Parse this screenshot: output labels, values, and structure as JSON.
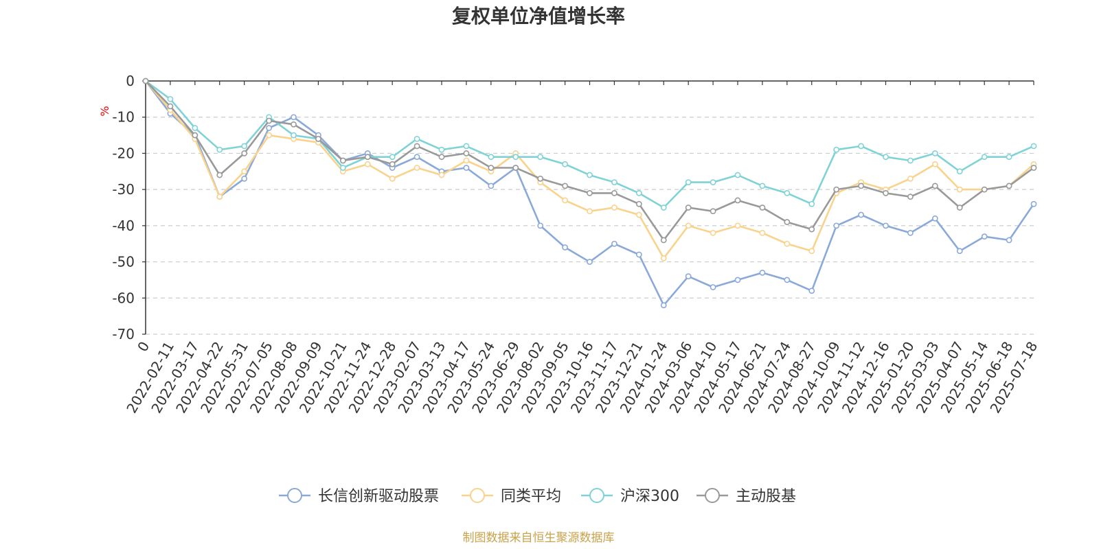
{
  "chart_data": {
    "type": "line",
    "title": "复权单位净值增长率",
    "ylabel": "%",
    "ylim": [
      -70,
      0
    ],
    "yticks": [
      0,
      -10,
      -20,
      -30,
      -40,
      -50,
      -60,
      -70
    ],
    "grid": true,
    "legend_position": "bottom",
    "source": "制图数据来自恒生聚源数据库",
    "x": [
      "0",
      "2022-02-11",
      "2022-03-17",
      "2022-04-22",
      "2022-05-31",
      "2022-07-05",
      "2022-08-08",
      "2022-09-09",
      "2022-10-21",
      "2022-11-24",
      "2022-12-28",
      "2023-02-07",
      "2023-03-13",
      "2023-04-17",
      "2023-05-24",
      "2023-06-29",
      "2023-08-02",
      "2023-09-05",
      "2023-10-16",
      "2023-11-17",
      "2023-12-21",
      "2024-01-24",
      "2024-03-06",
      "2024-04-10",
      "2024-05-17",
      "2024-06-21",
      "2024-07-24",
      "2024-08-27",
      "2024-10-09",
      "2024-11-12",
      "2024-12-16",
      "2025-01-20",
      "2025-03-03",
      "2025-04-07",
      "2025-05-14",
      "2025-06-18",
      "2025-07-18"
    ],
    "series": [
      {
        "name": "长信创新驱动股票",
        "color": "#8aa9d9",
        "values": [
          0,
          -9,
          -15,
          -32,
          -27,
          -13,
          -10,
          -15,
          -22,
          -20,
          -24,
          -21,
          -25,
          -24,
          -29,
          -24,
          -40,
          -46,
          -50,
          -45,
          -48,
          -62,
          -54,
          -57,
          -55,
          -53,
          -55,
          -58,
          -40,
          -37,
          -40,
          -42,
          -38,
          -47,
          -43,
          -44,
          -34
        ]
      },
      {
        "name": "同类平均",
        "color": "#f9d28c",
        "values": [
          0,
          -8,
          -16,
          -32,
          -25,
          -15,
          -16,
          -17,
          -25,
          -23,
          -27,
          -24,
          -26,
          -22,
          -25,
          -20,
          -28,
          -33,
          -36,
          -35,
          -37,
          -49,
          -40,
          -42,
          -40,
          -42,
          -45,
          -47,
          -31,
          -28,
          -30,
          -27,
          -23,
          -30,
          -30,
          -29,
          -23
        ]
      },
      {
        "name": "沪深300",
        "color": "#7fd2d6",
        "values": [
          0,
          -5,
          -13,
          -19,
          -18,
          -10,
          -15,
          -16,
          -24,
          -21,
          -21,
          -16,
          -19,
          -18,
          -21,
          -21,
          -21,
          -23,
          -26,
          -28,
          -31,
          -35,
          -28,
          -28,
          -26,
          -29,
          -31,
          -34,
          -19,
          -18,
          -21,
          -22,
          -20,
          -25,
          -21,
          -21,
          -18
        ]
      },
      {
        "name": "主动股基",
        "color": "#999999",
        "values": [
          0,
          -7,
          -15,
          -26,
          -20,
          -11,
          -12,
          -16,
          -22,
          -21,
          -23,
          -18,
          -21,
          -20,
          -24,
          -24,
          -27,
          -29,
          -31,
          -31,
          -34,
          -44,
          -35,
          -36,
          -33,
          -35,
          -39,
          -41,
          -30,
          -29,
          -31,
          -32,
          -29,
          -35,
          -30,
          -29,
          -24
        ]
      }
    ]
  }
}
